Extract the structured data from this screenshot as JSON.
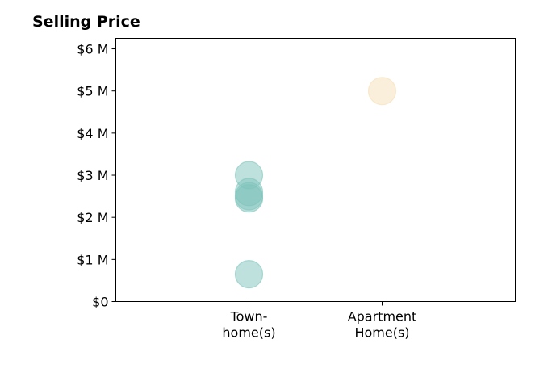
{
  "chart_data": {
    "type": "scatter",
    "title": "Selling Price",
    "xlabel": "",
    "ylabel": "",
    "categories": [
      [
        "Town-",
        "home(s)"
      ],
      [
        "Apartment",
        "Home(s)"
      ]
    ],
    "category_positions": [
      1,
      2
    ],
    "xlim": [
      0,
      3
    ],
    "ylim": [
      0,
      6.25
    ],
    "yticks": [
      0,
      1,
      2,
      3,
      4,
      5,
      6
    ],
    "ytick_labels": [
      "$0",
      "$1 M",
      "$2 M",
      "$3 M",
      "$4 M",
      "$5 M",
      "$6 M"
    ],
    "grid": false,
    "legend": "none",
    "points": [
      {
        "category": 0,
        "value": 3.0,
        "color": "#7fc4bc"
      },
      {
        "category": 0,
        "value": 2.6,
        "color": "#7fc4bc"
      },
      {
        "category": 0,
        "value": 2.5,
        "color": "#7fc4bc"
      },
      {
        "category": 0,
        "value": 2.45,
        "color": "#7fc4bc"
      },
      {
        "category": 0,
        "value": 0.65,
        "color": "#7fc4bc"
      },
      {
        "category": 1,
        "value": 5.0,
        "color": "#f5e0b8"
      }
    ]
  }
}
